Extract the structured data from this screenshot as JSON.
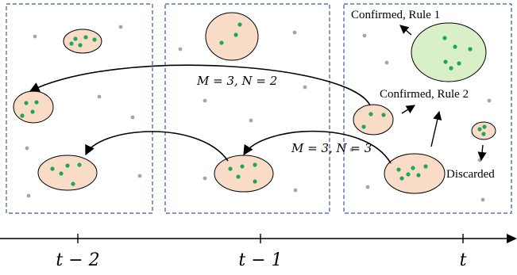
{
  "annotations": {
    "confirmed_rule1": "Confirmed, Rule 1",
    "confirmed_rule2": "Confirmed, Rule 2",
    "discarded": "Discarded",
    "params_upper": "M = 3, N = 2",
    "params_lower": "M = 3, N = 3"
  },
  "timeline": {
    "ticks": [
      "t − 2",
      "t − 1",
      "t"
    ]
  },
  "colors": {
    "frame_border": "#3b5b95",
    "cluster_fill": "#f9dcc8",
    "cluster_confirmed_fill": "#d8efc8",
    "point_member": "#1fa65a",
    "point_noise": "#a6a6a6",
    "arrow": "#000000"
  }
}
